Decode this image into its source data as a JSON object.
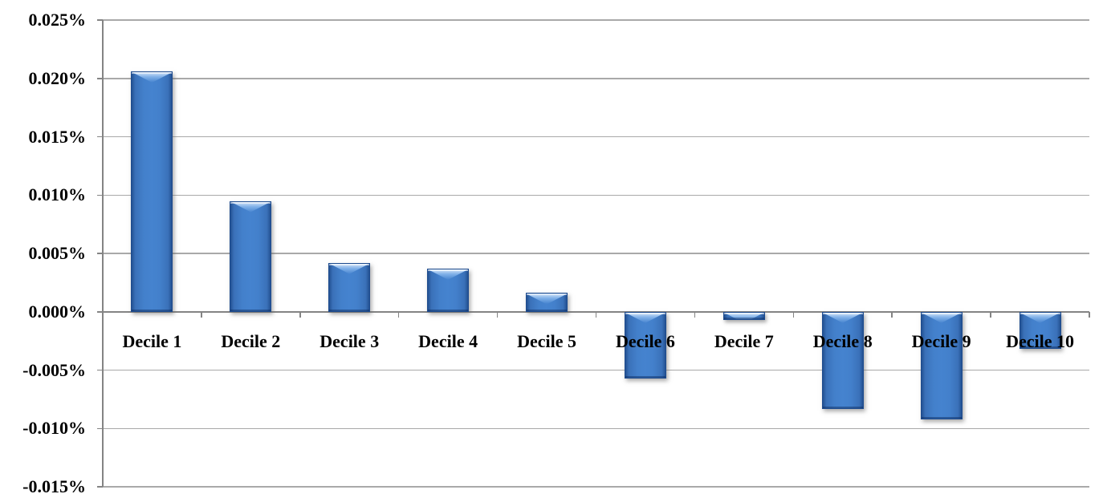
{
  "chart_data": {
    "type": "bar",
    "title": "",
    "xlabel": "",
    "ylabel": "",
    "categories": [
      "Decile 1",
      "Decile 2",
      "Decile 3",
      "Decile 4",
      "Decile 5",
      "Decile 6",
      "Decile 7",
      "Decile 8",
      "Decile 9",
      "Decile 10"
    ],
    "values": [
      0.0206,
      0.0095,
      0.0042,
      0.0037,
      0.0016,
      -0.0057,
      -0.0007,
      -0.0083,
      -0.0092,
      -0.0032
    ],
    "unit": "%",
    "ylim": [
      -0.015,
      0.025
    ],
    "ytick_step": 0.005,
    "y_tick_labels": [
      "0.025%",
      "0.020%",
      "0.015%",
      "0.010%",
      "0.005%",
      "0.000%",
      "-0.005%",
      "-0.010%",
      "-0.015%"
    ],
    "grid": true,
    "legend_position": "none",
    "bar_color": "#4583CF",
    "bar_edge_color": "#1E4C8F",
    "gridline_color": "#A9A9A9",
    "axis_color": "#848484",
    "text_color": "#000000",
    "background_color": "#FFFFFF"
  }
}
